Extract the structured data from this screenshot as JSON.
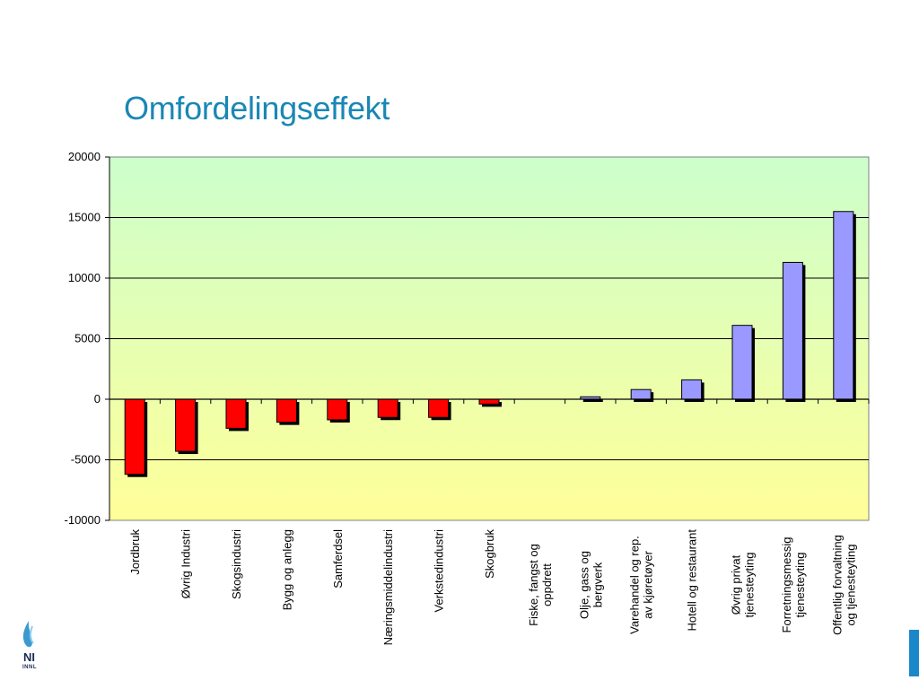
{
  "slide": {
    "title": "Omfordelingseffekt",
    "logo_text": "NI",
    "logo_subtext": "INNL"
  },
  "colors": {
    "title": "#1a87b5",
    "negative_bar": "#ff0000",
    "positive_bar": "#9999ff",
    "plot_top": "#ccffcc",
    "plot_bottom": "#ffff99",
    "edge_accent": "#1a87c8"
  },
  "chart_data": {
    "type": "bar",
    "title": "",
    "xlabel": "",
    "ylabel": "",
    "ylim": [
      -10000,
      20000
    ],
    "y_ticks": [
      20000,
      15000,
      10000,
      5000,
      0,
      -5000,
      -10000
    ],
    "grid": true,
    "categories": [
      [
        "Jordbruk"
      ],
      [
        "Øvrig Industri"
      ],
      [
        "Skogsindustri"
      ],
      [
        "Bygg og anlegg"
      ],
      [
        "Samferdsel"
      ],
      [
        "Næringsmiddelindustri"
      ],
      [
        "Verkstedindustri"
      ],
      [
        "Skogbruk"
      ],
      [
        "Fiske, fangst og",
        "oppdrett"
      ],
      [
        "Olje,  gass og",
        "bergverk"
      ],
      [
        "Varehandel og rep.",
        "av kjøretøyer"
      ],
      [
        "Hotell og restaurant"
      ],
      [
        "Øvrig privat",
        "tjenesteyting"
      ],
      [
        "Forretningsmessig",
        "tjenesteyting"
      ],
      [
        "Offentlig forvaltning",
        "og tjenesteyting"
      ]
    ],
    "values": [
      -6200,
      -4300,
      -2400,
      -1900,
      -1700,
      -1500,
      -1500,
      -400,
      0,
      200,
      800,
      1600,
      6100,
      11300,
      15500
    ]
  }
}
